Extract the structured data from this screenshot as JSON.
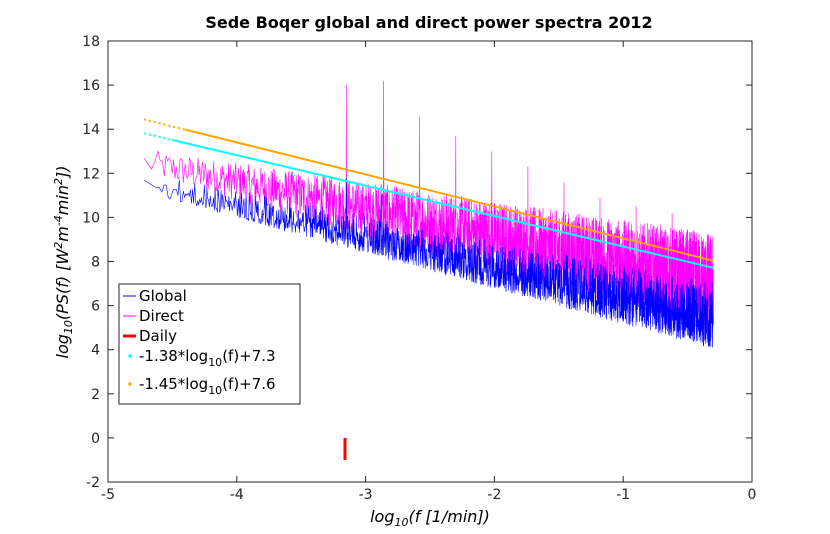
{
  "chart_data": {
    "type": "line",
    "title": "Sede Boqer global and direct power spectra 2012",
    "xlabel": {
      "prefix": "log",
      "sub": "10",
      "rest": "(f [1/min])"
    },
    "ylabel": {
      "prefix": "log",
      "sub": "10",
      "mid": "(PS(f) [W",
      "sup1": "2",
      "mid2": "m",
      "sup2": "-4",
      "mid3": "min",
      "sup3": "2",
      "end": "])"
    },
    "xlim": [
      -5,
      0
    ],
    "ylim": [
      -2,
      18
    ],
    "x_ticks": [
      "-5",
      "-4",
      "-3",
      "-2",
      "-1",
      "0"
    ],
    "y_ticks": [
      "-2",
      "0",
      "2",
      "4",
      "6",
      "8",
      "10",
      "12",
      "14",
      "16",
      "18"
    ],
    "x_range_data": [
      -4.72,
      -0.3
    ],
    "series": [
      {
        "name": "Global",
        "color": "#0000ff",
        "kind": "noisy-spectrum",
        "trend_start": [
          -4.72,
          11.8
        ],
        "trend_end": [
          -0.3,
          6.2
        ],
        "low_envelope_end": 3.8,
        "peaks": [
          [
            -3.15,
            11.8
          ],
          [
            -2.88,
            11.5
          ]
        ]
      },
      {
        "name": "Direct",
        "color": "#ff00ff",
        "kind": "noisy-spectrum",
        "trend_start": [
          -4.72,
          12.5
        ],
        "trend_end": [
          -0.3,
          7.0
        ],
        "upper_envelope_start": 13.3,
        "upper_envelope_end": 9.2,
        "peaks": [
          [
            -3.15,
            16.0
          ],
          [
            -2.86,
            16.2
          ],
          [
            -2.58,
            14.6
          ],
          [
            -2.3,
            13.7
          ],
          [
            -2.02,
            13.0
          ],
          [
            -1.74,
            12.3
          ],
          [
            -1.46,
            11.6
          ],
          [
            -1.18,
            10.9
          ],
          [
            -0.9,
            10.5
          ],
          [
            -0.62,
            10.2
          ]
        ]
      },
      {
        "name": "Daily",
        "color": "#ff0000",
        "kind": "marker",
        "x": -3.16,
        "y": [
          -1.0,
          0.0
        ]
      },
      {
        "name": "-1.38*log10(f)+7.3",
        "legend_parts": [
          "-1.38*log",
          "10",
          "(f)+7.3"
        ],
        "color": "#00ffff",
        "kind": "fit",
        "slope": -1.38,
        "intercept": 7.3,
        "x_dotted": [
          -4.72,
          -4.5
        ],
        "x_solid": [
          -4.5,
          -0.3
        ]
      },
      {
        "name": "-1.45*log10(f)+7.6",
        "legend_parts": [
          "-1.45*log",
          "10",
          "(f)+7.6"
        ],
        "color": "#ffa500",
        "kind": "fit",
        "slope": -1.45,
        "intercept": 7.6,
        "x_dotted": [
          -4.72,
          -4.4
        ],
        "x_solid": [
          -4.4,
          -0.3
        ]
      }
    ],
    "legend": "bottom-left",
    "grid": false
  }
}
